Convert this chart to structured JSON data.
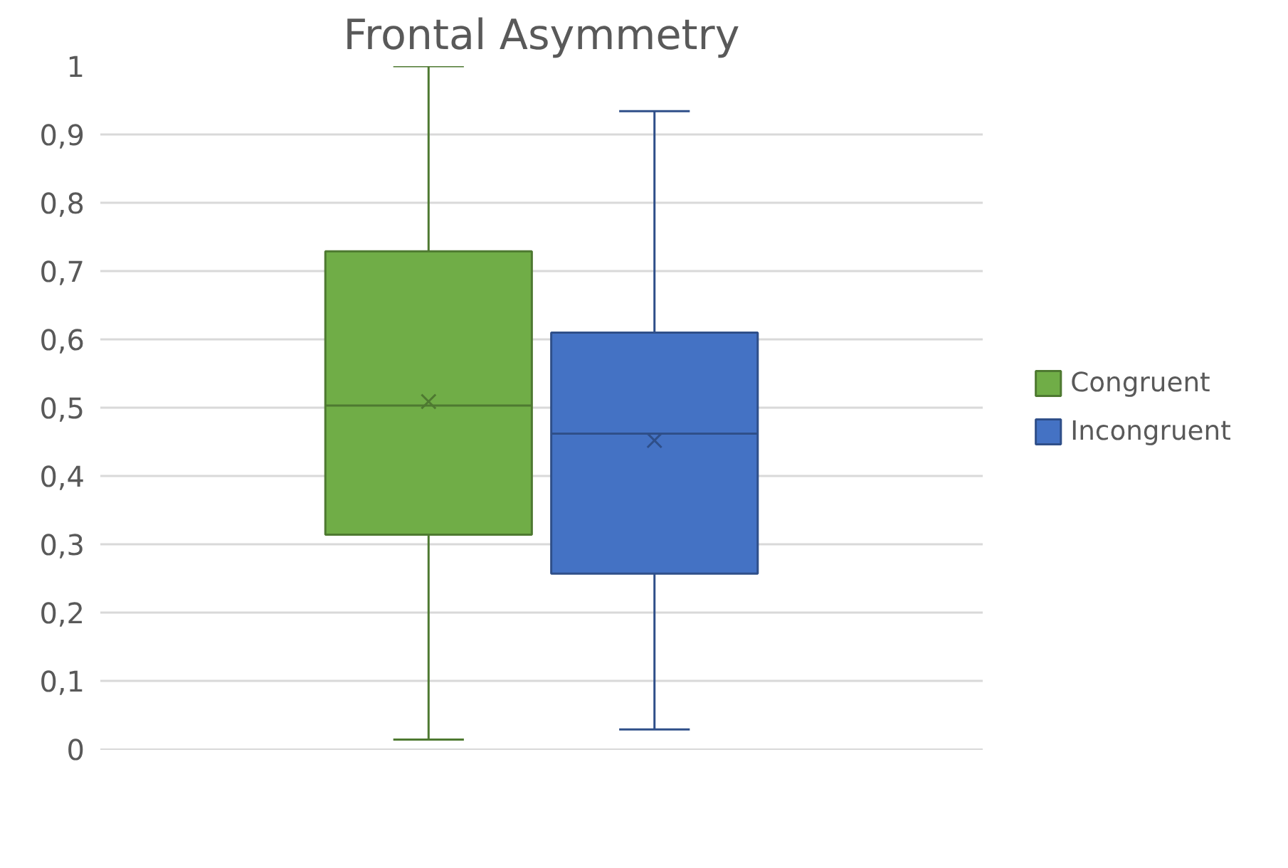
{
  "chart_data": {
    "type": "box",
    "title": "Frontal Asymmetry",
    "categories": [
      null
    ],
    "series": [
      {
        "name": "Congruent",
        "color": "#70ad47",
        "boxes": [
          {
            "low": 0.014,
            "q1": 0.314,
            "median": 0.503,
            "q3": 0.729,
            "high": 1.0,
            "mean": 0.509
          }
        ]
      },
      {
        "name": "Incongruent",
        "color": "#4472c4",
        "boxes": [
          {
            "low": 0.029,
            "q1": 0.257,
            "median": 0.462,
            "q3": 0.61,
            "high": 0.934,
            "mean": 0.452
          }
        ]
      }
    ],
    "ylim": [
      0,
      1
    ],
    "yticks": [
      0,
      {
        "value": 0.1,
        "label": "0,1"
      },
      {
        "value": 0.2,
        "label": "0,2"
      },
      {
        "value": 0.3,
        "label": "0,3"
      },
      {
        "value": 0.4,
        "label": "0,4"
      },
      {
        "value": 0.5,
        "label": "0,5"
      },
      {
        "value": 0.6,
        "label": "0,6"
      },
      {
        "value": 0.7,
        "label": "0,7"
      },
      {
        "value": 0.8,
        "label": "0,8"
      },
      {
        "value": 0.9,
        "label": "0,9"
      },
      1
    ],
    "grid": "y",
    "legend": "right",
    "tick_labels": "y"
  }
}
